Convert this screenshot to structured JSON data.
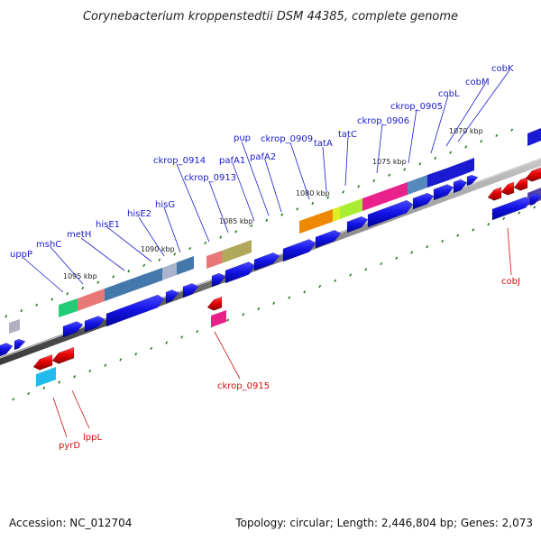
{
  "title": "Corynebacterium kroppenstedtii DSM 44385, complete genome",
  "footer": {
    "accession": "Accession: NC_012704",
    "summary": "Topology: circular; Length: 2,446,804 bp; Genes: 2,073"
  },
  "scale_labels": [
    "1070 kbp",
    "1075 kbp",
    "1080 kbp",
    "1085 kbp",
    "1090 kbp",
    "1095 kbp"
  ],
  "gene_labels_forward": [
    "cobK",
    "cobM",
    "cobL",
    "ckrop_0905",
    "ckrop_0906",
    "tatC",
    "tatA",
    "ckrop_0909",
    "pafA2",
    "pafA1",
    "pup",
    "ckrop_0913",
    "ckrop_0914",
    "hisG",
    "hisE2",
    "hisE1",
    "metH",
    "mshC",
    "uppP"
  ],
  "gene_labels_reverse": [
    "cobJ",
    "ckrop_0915",
    "lppL",
    "pyrD"
  ],
  "colors": {
    "forward_gene": "#1515dd",
    "reverse_gene": "#e00000",
    "backbone": "#7a7a7a",
    "tick": "#1a7a1a",
    "label_forward": "#1a1acc",
    "label_reverse": "#d10f0f"
  }
}
